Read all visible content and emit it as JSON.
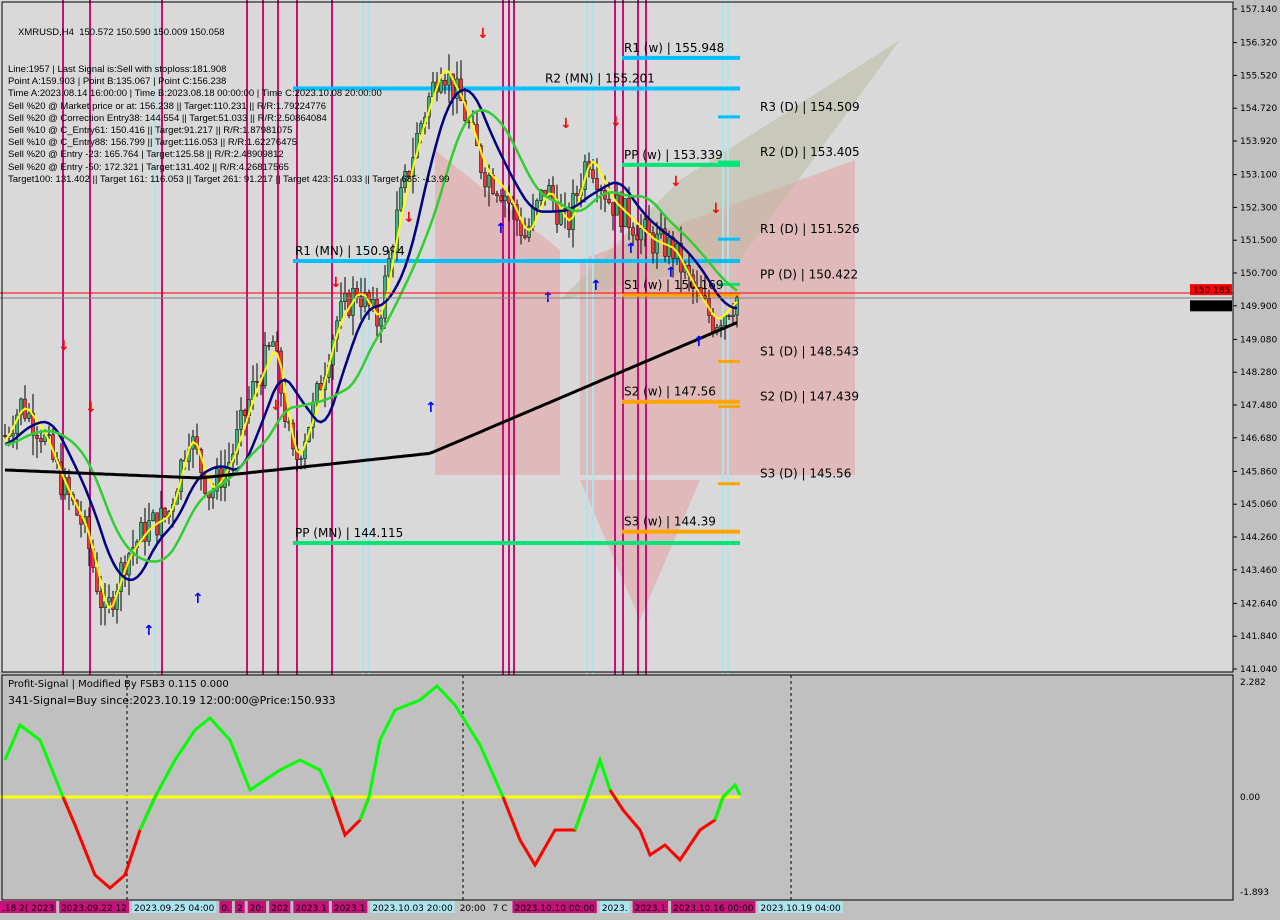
{
  "header": {
    "symbol_line": "XMRUSD,H4  150.572 150.590 150.009 150.058",
    "lines": [
      "Line:1957 | Last Signal is:Sell with stoploss:181.908",
      "Point A:159.903 | Point B:135.067 | Point C:156.238",
      "Time A:2023.08.14 16:00:00 | Time B:2023.08.18 00:00:00 | Time C:2023.10.08 20:00:00",
      "Sell %20 @ Market price or at: 156.238 || Target:110.231 || R/R:1.79224776",
      "Sell %20 @ Correction Entry38: 144.554 || Target:51.033 || R/R:2.50864084",
      "Sell %10 @ C_Entry61: 150.416 || Target:91.217 || R/R:1.87981075",
      "Sell %10 @ C_Entry88: 156.799 || Target:116.053 || R/R:1.62276475",
      "Sell %20 @ Entry -23: 165.764 | Target:125.58 || R/R:2.48909812",
      "Sell %20 @ Entry -50: 172.321 | Target:131.402 || R/R:4.26817565",
      "Target100: 131.402 || Target 161: 116.053 || Target 261: 91.217 || Target 423: 51.033 || Target 685: -13.99"
    ]
  },
  "indicator": {
    "title": "Profit-Signal | Modified By FSB3 0.115 0.000",
    "signal": "341-Signal=Buy since:2023.10.19 12:00:00@Price:150.933",
    "ticks": [
      "2.282",
      "0.00",
      "-1.893"
    ]
  },
  "chart_data": {
    "type": "candlestick",
    "symbol": "XMRUSD",
    "timeframe": "H4",
    "ylim": [
      141.04,
      157.14
    ],
    "y_ticks": [
      "157.140",
      "156.320",
      "155.520",
      "154.720",
      "153.920",
      "153.100",
      "152.300",
      "151.500",
      "150.700",
      "149.900",
      "149.080",
      "148.280",
      "147.480",
      "146.680",
      "145.860",
      "145.060",
      "144.260",
      "143.460",
      "142.640",
      "141.840",
      "141.040"
    ],
    "current_price": "150.058",
    "ask_price": "150.185",
    "x_labels": [
      ".18 2( 2023",
      "2023.09.22 12",
      "2023.09.25 04:00",
      "0.",
      "2",
      "20:",
      "202",
      "2023.1",
      "2023.1",
      "2023.10.03 20:00",
      "20:00",
      "7 C",
      "2023.10.10 00:00",
      "2023.",
      "2023.1",
      "2023.10.16 00:00",
      "2023.10.19 04:00"
    ],
    "close_path": [
      146.5,
      147.5,
      146.8,
      145.5,
      144.5,
      142.3,
      143.8,
      144.5,
      144.8,
      146.8,
      145.3,
      146.2,
      147.8,
      149.0,
      146.0,
      147.5,
      149.5,
      150.3,
      149.5,
      152.3,
      154.3,
      155.8,
      154.8,
      153.2,
      152.7,
      151.6,
      152.8,
      151.8,
      153.6,
      152.5,
      152.0,
      151.5,
      151.3,
      150.3,
      149.5,
      150.05
    ],
    "levels": [
      {
        "label": "R1 (w) | 155.948",
        "price": 155.948,
        "color": "#00bfff"
      },
      {
        "label": "R2 (MN) | 155.201",
        "price": 155.201,
        "color": "#00bfff"
      },
      {
        "label": "R3 (D) | 154.509",
        "price": 154.509,
        "color": "#00bfff"
      },
      {
        "label": "R2 (D) | 153.405",
        "price": 153.405,
        "color": "#00e676"
      },
      {
        "label": "PP (w) | 153.339",
        "price": 153.339,
        "color": "#00e676"
      },
      {
        "label": "R1 (D) | 151.526",
        "price": 151.526,
        "color": "#00bfff"
      },
      {
        "label": "R1 (MN) | 150.994",
        "price": 150.994,
        "color": "#00bfff"
      },
      {
        "label": "PP (D) | 150.422",
        "price": 150.422,
        "color": "#00e676"
      },
      {
        "label": "S1 (w) | 150.169",
        "price": 150.169,
        "color": "#ffa500"
      },
      {
        "label": "S1 (D) | 148.543",
        "price": 148.543,
        "color": "#ffa500"
      },
      {
        "label": "S2 (w) | 147.56",
        "price": 147.56,
        "color": "#ffa500"
      },
      {
        "label": "S2 (D) | 147.439",
        "price": 147.439,
        "color": "#ffa500"
      },
      {
        "label": "S3 (D) | 145.56",
        "price": 145.56,
        "color": "#ffa500"
      },
      {
        "label": "S3 (w) | 144.39",
        "price": 144.39,
        "color": "#ffa500"
      },
      {
        "label": "PP (MN) | 144.115",
        "price": 144.115,
        "color": "#00e676"
      }
    ],
    "colors": {
      "signal_line_magenta": "#c8107a",
      "signal_line_cyan": "#aee4ee",
      "ma_fast": "#ffff00",
      "ma_navy": "#000080",
      "ma_green": "#32cd32",
      "ma_200": "#000000"
    }
  }
}
